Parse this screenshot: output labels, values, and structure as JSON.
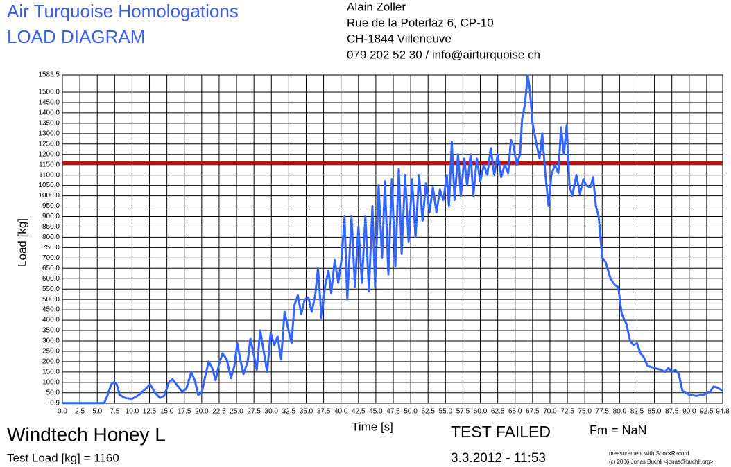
{
  "header": {
    "title": "Air Turquoise Homologations",
    "subtitle": "LOAD DIAGRAM",
    "address": [
      "Alain Zoller",
      "Rue de la Poterlaz 6, CP-10",
      "CH-1844 Villeneuve",
      "079 202 52 30 / info@airturquoise.ch"
    ]
  },
  "footer": {
    "glider": "Windtech Honey L",
    "test_load_label": "Test Load [kg] = 1160",
    "result": "TEST FAILED",
    "fm": "Fm = NaN",
    "date": "3.3.2012 - 11:53",
    "credit": [
      "measurement with ShockRecord",
      "(c) 2006 Jonas Buchli <jonas@buchli.org>"
    ]
  },
  "chart_data": {
    "type": "line",
    "x_label": "Time [s]",
    "y_label": "Load [kg]",
    "grid": true,
    "test_load": 1160,
    "test_load_color": "#dd0000",
    "xlim": [
      0,
      94.8
    ],
    "ylim": [
      -0.9,
      1583.5
    ],
    "xticks": [
      {
        "value": 0,
        "label": "0.0"
      },
      2.5,
      {
        "value": 5,
        "label": "5.0"
      },
      7.5,
      {
        "value": 10,
        "label": "10.0"
      },
      12.5,
      {
        "value": 15,
        "label": "15.0"
      },
      17.5,
      {
        "value": 20,
        "label": "20.0"
      },
      22.5,
      {
        "value": 25,
        "label": "25.0"
      },
      27.5,
      {
        "value": 30,
        "label": "30.0"
      },
      32.5,
      {
        "value": 35,
        "label": "35.0"
      },
      37.5,
      {
        "value": 40,
        "label": "40.0"
      },
      42.5,
      {
        "value": 45,
        "label": "45.0"
      },
      47.5,
      {
        "value": 50,
        "label": "50.0"
      },
      52.5,
      {
        "value": 55,
        "label": "55.0"
      },
      57.5,
      {
        "value": 60,
        "label": "60.0"
      },
      62.5,
      {
        "value": 65,
        "label": "65.0"
      },
      67.5,
      {
        "value": 70,
        "label": "70.0"
      },
      72.5,
      {
        "value": 75,
        "label": "75.0"
      },
      77.5,
      {
        "value": 80,
        "label": "80.0"
      },
      82.5,
      {
        "value": 85,
        "label": "85.0"
      },
      87.5,
      {
        "value": 90,
        "label": "90.0"
      },
      92.5,
      94.8
    ],
    "yticks": [
      -0.9,
      {
        "value": 50,
        "label": "50.0"
      },
      {
        "value": 100,
        "label": "100.0"
      },
      {
        "value": 150,
        "label": "150.0"
      },
      {
        "value": 200,
        "label": "200.0"
      },
      {
        "value": 250,
        "label": "250.0"
      },
      {
        "value": 300,
        "label": "300.0"
      },
      {
        "value": 350,
        "label": "350.0"
      },
      {
        "value": 400,
        "label": "400.0"
      },
      {
        "value": 450,
        "label": "450.0"
      },
      {
        "value": 500,
        "label": "500.0"
      },
      {
        "value": 550,
        "label": "550.0"
      },
      {
        "value": 600,
        "label": "600.0"
      },
      {
        "value": 650,
        "label": "650.0"
      },
      {
        "value": 700,
        "label": "700.0"
      },
      {
        "value": 750,
        "label": "750.0"
      },
      {
        "value": 800,
        "label": "800.0"
      },
      {
        "value": 850,
        "label": "850.0"
      },
      {
        "value": 900,
        "label": "900.0"
      },
      {
        "value": 950,
        "label": "950.0"
      },
      {
        "value": 1000,
        "label": "1000.0"
      },
      {
        "value": 1050,
        "label": "1050.0"
      },
      {
        "value": 1100,
        "label": "1100.0"
      },
      {
        "value": 1150,
        "label": "1150.0"
      },
      {
        "value": 1200,
        "label": "1200.0"
      },
      {
        "value": 1250,
        "label": "1250.0"
      },
      {
        "value": 1300,
        "label": "1300.0"
      },
      {
        "value": 1350,
        "label": "1350.0"
      },
      {
        "value": 1400,
        "label": "1400.0"
      },
      {
        "value": 1450,
        "label": "1450.0"
      },
      {
        "value": 1500,
        "label": "1500.0"
      },
      1583.5
    ],
    "x": [
      0,
      2,
      4,
      6,
      6.5,
      7,
      7.4,
      7.8,
      8.2,
      9,
      10,
      11,
      12,
      12.6,
      13.3,
      14,
      14.6,
      15.3,
      15.8,
      16.5,
      17.2,
      17.8,
      18.5,
      19,
      19.5,
      20,
      20.5,
      21,
      21.5,
      22,
      22.5,
      23,
      23.6,
      24.2,
      24.7,
      25.1,
      25.6,
      26,
      26.6,
      27,
      27.5,
      27.9,
      28.4,
      28.9,
      29.4,
      29.9,
      30.4,
      30.9,
      31.4,
      31.9,
      32.4,
      32.9,
      33.3,
      33.8,
      34.3,
      34.8,
      35.3,
      35.8,
      36.3,
      36.7,
      37.2,
      37.7,
      38.2,
      38.6,
      39.1,
      39.6,
      40.1,
      40.5,
      40.9,
      41.5,
      42,
      42.5,
      43,
      43.5,
      44,
      44.5,
      44.9,
      45.4,
      45.9,
      46.3,
      46.8,
      47.3,
      47.8,
      48.3,
      48.7,
      49.2,
      49.7,
      50.2,
      50.7,
      51.2,
      51.7,
      52.2,
      52.7,
      53.2,
      53.7,
      54.2,
      54.7,
      55.2,
      55.5,
      55.9,
      56.3,
      56.8,
      57.2,
      57.7,
      58.1,
      58.6,
      59,
      59.5,
      60,
      60.5,
      61,
      61.5,
      62,
      62.5,
      63,
      63.5,
      64,
      64.4,
      64.8,
      65.2,
      65.7,
      66,
      66.4,
      66.8,
      67.1,
      67.5,
      68,
      68.5,
      68.9,
      69.3,
      69.8,
      70.2,
      70.7,
      71.2,
      71.6,
      72,
      72.4,
      72.8,
      73.2,
      73.8,
      74.3,
      74.8,
      75.2,
      75.8,
      76.2,
      76.6,
      77,
      77.5,
      78,
      78.7,
      79.3,
      79.8,
      80.3,
      81,
      81.5,
      82,
      82.5,
      83,
      83.5,
      84,
      85,
      86,
      86.5,
      87,
      87.5,
      88,
      88.5,
      89,
      90,
      91,
      92,
      93,
      93.5,
      94,
      94.8
    ],
    "series": [
      {
        "color": "#3366ff",
        "values": [
          0,
          0,
          0,
          0,
          40,
          90,
          100,
          90,
          40,
          25,
          20,
          40,
          70,
          90,
          50,
          25,
          35,
          100,
          115,
          85,
          55,
          70,
          150,
          110,
          40,
          50,
          130,
          200,
          170,
          110,
          190,
          240,
          210,
          120,
          180,
          290,
          200,
          140,
          200,
          310,
          230,
          160,
          350,
          250,
          150,
          340,
          280,
          320,
          210,
          440,
          360,
          290,
          470,
          520,
          430,
          500,
          510,
          440,
          520,
          650,
          410,
          560,
          640,
          530,
          690,
          580,
          700,
          900,
          500,
          900,
          560,
          850,
          580,
          900,
          540,
          950,
          560,
          1050,
          700,
          1070,
          620,
          1080,
          660,
          1130,
          720,
          1100,
          780,
          1080,
          800,
          1100,
          880,
          1060,
          920,
          1040,
          920,
          1030,
          980,
          1100,
          950,
          1260,
          980,
          1200,
          1000,
          1180,
          1050,
          1200,
          1000,
          1180,
          1070,
          1150,
          1100,
          1230,
          1100,
          1200,
          1090,
          1150,
          1110,
          1270,
          1240,
          1150,
          1200,
          1370,
          1440,
          1580,
          1520,
          1350,
          1260,
          1180,
          1300,
          1120,
          950,
          1100,
          1150,
          1110,
          1330,
          1200,
          1340,
          1050,
          1000,
          1100,
          1010,
          1080,
          1050,
          1040,
          1090,
          950,
          900,
          700,
          680,
          600,
          570,
          560,
          430,
          380,
          300,
          280,
          290,
          240,
          220,
          180,
          170,
          160,
          150,
          170,
          150,
          160,
          140,
          60,
          40,
          35,
          40,
          55,
          80,
          75,
          60
        ]
      }
    ]
  }
}
